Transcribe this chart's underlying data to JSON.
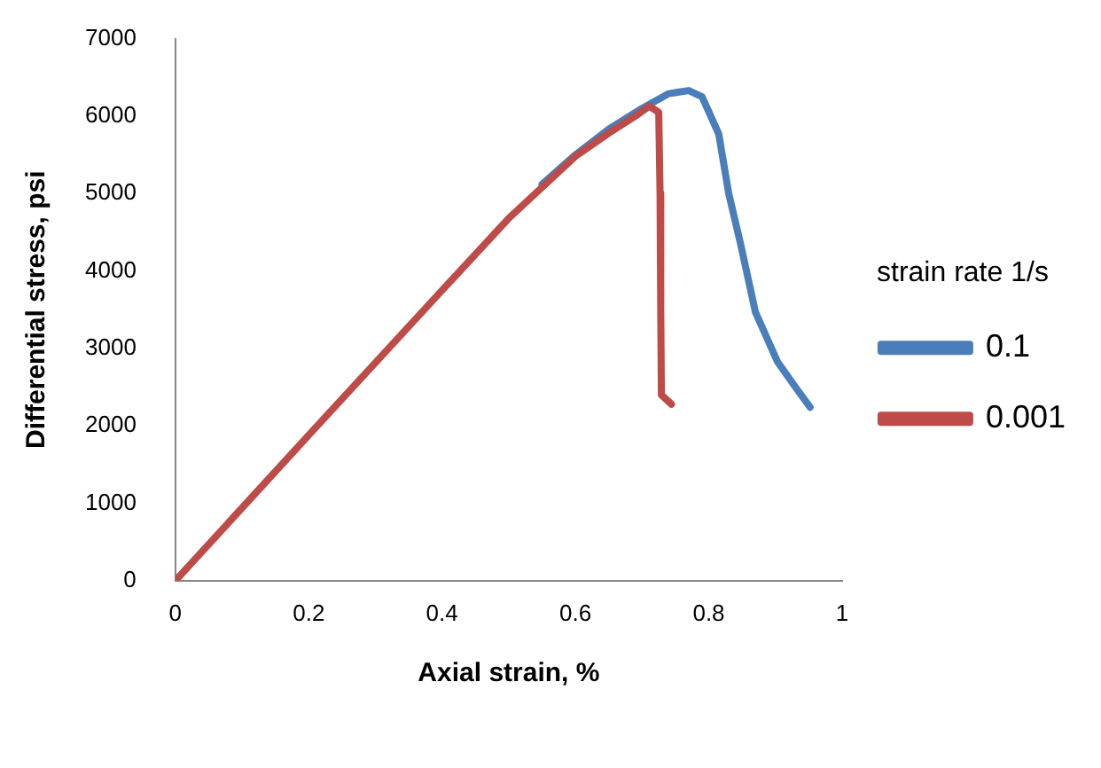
{
  "chart_data": {
    "type": "line",
    "xlabel": "Axial strain, %",
    "ylabel": "Differential stress, psi",
    "legend_title": "strain rate 1/s",
    "legend": "right",
    "grid": false,
    "marker": "none",
    "line_style": "solid",
    "xlim": [
      0,
      1
    ],
    "xticks": [
      0,
      0.2,
      0.4,
      0.6,
      0.8,
      1
    ],
    "ylim": [
      0,
      7000
    ],
    "yticks": [
      0,
      1000,
      2000,
      3000,
      4000,
      5000,
      6000,
      7000
    ],
    "series": [
      {
        "name": "0.1",
        "color": "#4a7ebb",
        "x": [
          0.55,
          0.6,
          0.65,
          0.7,
          0.74,
          0.77,
          0.79,
          0.815,
          0.83,
          0.848,
          0.87,
          0.903,
          0.93,
          0.952
        ],
        "values": [
          5120,
          5500,
          5830,
          6100,
          6290,
          6330,
          6250,
          5770,
          5000,
          4340,
          3470,
          2830,
          2500,
          2240
        ]
      },
      {
        "name": "0.001",
        "color": "#be4b48",
        "x": [
          0,
          0.2,
          0.4,
          0.5,
          0.6,
          0.65,
          0.69,
          0.711,
          0.725,
          0.727,
          0.728,
          0.729,
          0.744
        ],
        "values": [
          0,
          1880,
          3750,
          4680,
          5480,
          5780,
          6000,
          6130,
          6050,
          5000,
          3500,
          2400,
          2280
        ]
      }
    ]
  }
}
